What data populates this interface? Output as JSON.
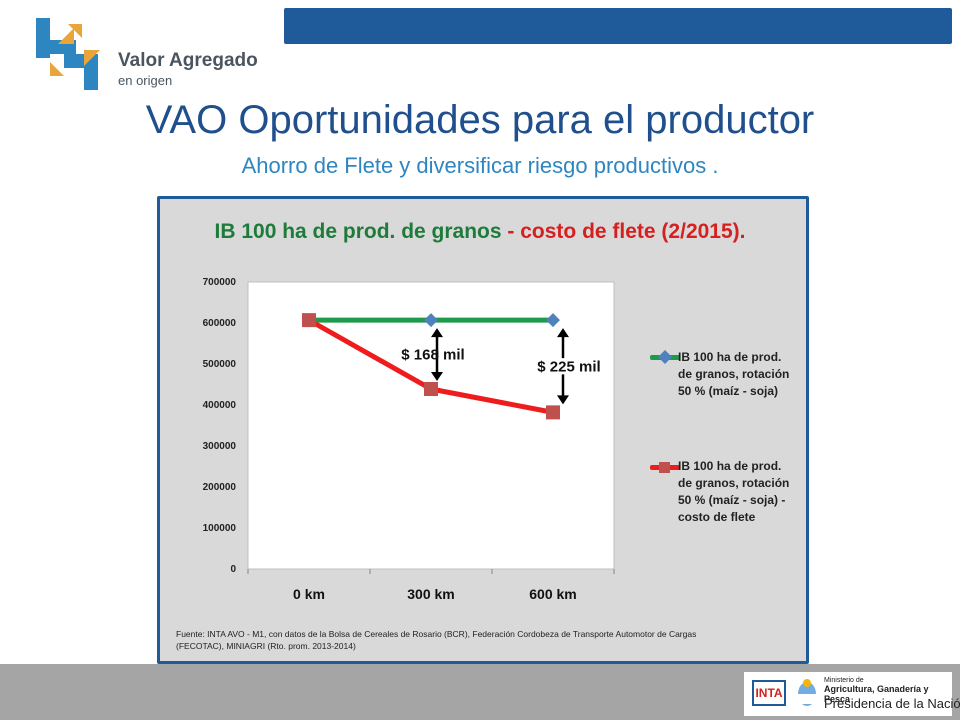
{
  "header": {
    "logo_line1": "Valor Agregado",
    "logo_line2": "en origen",
    "title": "VAO Oportunidades para el productor",
    "subtitle": "Ahorro de Flete y  diversificar  riesgo productivos ."
  },
  "colors": {
    "brand_blue": "#1f5b9a",
    "series_green": "#1e9b4a",
    "series_red": "#ee1c1c",
    "marker_blue": "#4f81bd",
    "marker_red": "#c0504d"
  },
  "chart_data": {
    "type": "line",
    "title_part1": "IB 100 ha de prod. de granos",
    "title_part2": " - costo de flete (2/2015).",
    "categories": [
      "0 km",
      "300 km",
      "600 km"
    ],
    "ylim": [
      0,
      700000
    ],
    "yticks": [
      "0",
      "100000",
      "200000",
      "300000",
      "400000",
      "500000",
      "600000",
      "700000"
    ],
    "grid": false,
    "legend_position": "right",
    "series": [
      {
        "name": "IB 100 ha de prod. de granos, rotación 50 % (maíz - soja)",
        "name_lines": [
          "IB 100 ha de prod.",
          "de granos, rotación",
          "50 % (maíz - soja)"
        ],
        "values": [
          607000,
          607000,
          607000
        ],
        "line_color": "#1e9b4a",
        "marker": "diamond",
        "marker_color": "#4f81bd"
      },
      {
        "name": "IB 100 ha de prod. de granos, rotación 50 % (maíz - soja) - costo de flete",
        "name_lines": [
          "IB 100 ha de prod.",
          "de granos, rotación",
          "50 % (maíz - soja)  -",
          "costo de flete"
        ],
        "values": [
          607000,
          439000,
          382000
        ],
        "line_color": "#ee1c1c",
        "marker": "square",
        "marker_color": "#c0504d"
      }
    ],
    "annotations": [
      {
        "text": "$ 168 mil",
        "category": "300 km"
      },
      {
        "text": "$ 225 mil",
        "category": "600 km"
      }
    ]
  },
  "source": {
    "line1": "Fuente: INTA AVO - M1, con datos de la Bolsa de Cereales de Rosario (BCR), Federación  Cordobeza de Transporte Automotor de Cargas",
    "line2": "(FECOTAC), MINIAGRI (Rto. prom. 2013-2014)"
  },
  "footer": {
    "inta": "INTA",
    "ministry_line1": "Ministerio de",
    "ministry_line2": "Agricultura, Ganadería y Pesca",
    "ministry_line3": "Presidencia de la Nación"
  }
}
